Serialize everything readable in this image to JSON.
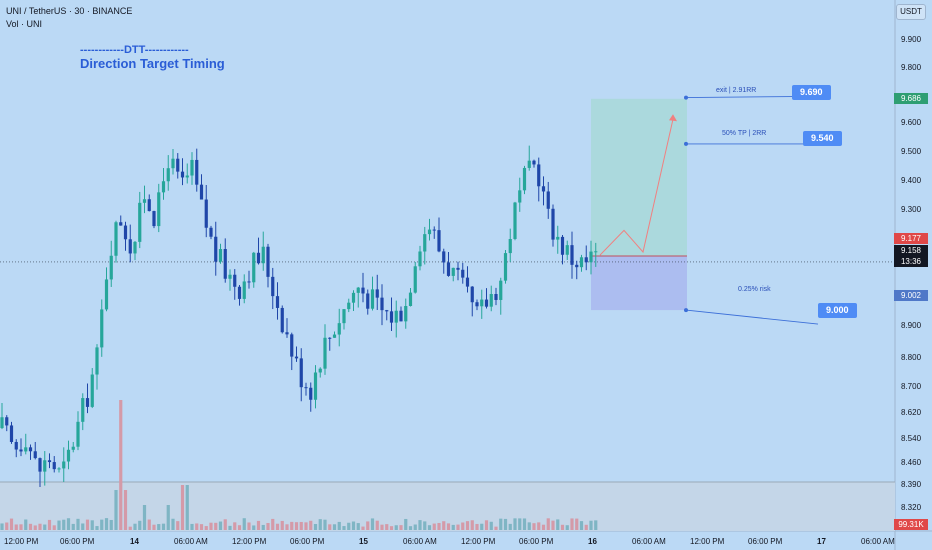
{
  "header": {
    "symbol_line": "UNI / TetherUS · 30 · BINANCE",
    "volume_line": "Vol · UNI",
    "currency_button": "USDT"
  },
  "watermark": {
    "line1": "------------DTT------------",
    "line2": "Direction Target Timing"
  },
  "annotations": {
    "exit_text": "exit | 2.91RR",
    "exit_price": "9.690",
    "tp_text": "50% TP | 2RR",
    "tp_price": "9.540",
    "risk_text": "0.25% risk",
    "risk_price": "9.000"
  },
  "price_axis": {
    "ticks": [
      "9.900",
      "9.800",
      "9.700",
      "9.600",
      "9.500",
      "9.400",
      "9.300",
      "9.100",
      "8.900",
      "8.800",
      "8.700",
      "8.620",
      "8.540",
      "8.460",
      "8.390",
      "8.320"
    ],
    "badge_target": "9.686",
    "badge_entry": "9.177",
    "badge_current": "9.158",
    "badge_countdown": "13:36",
    "badge_stop": "9.002",
    "badge_volume": "99.31K"
  },
  "time_axis": {
    "labels": [
      "12:00 PM",
      "06:00 PM",
      "14",
      "06:00 AM",
      "12:00 PM",
      "06:00 PM",
      "15",
      "06:00 AM",
      "12:00 PM",
      "06:00 PM",
      "16",
      "06:00 AM",
      "12:00 PM",
      "06:00 PM",
      "17",
      "06:00 AM"
    ]
  },
  "colors": {
    "background": "#bbd9f5",
    "up_candle": "#26a69a",
    "down_candle": "#1f46a8",
    "volume_up": "#7fb5c4",
    "volume_down": "#d49aa8",
    "profit_zone": "#a8d8d8",
    "loss_zone": "#a9b7ee",
    "projection_line": "#f08080"
  },
  "chart_data": {
    "type": "candlestick",
    "symbol": "UNI / TetherUS",
    "interval": "30",
    "exchange": "BINANCE",
    "y_unit": "USDT",
    "ylim": [
      8.29,
      9.98
    ],
    "position": {
      "entry": 9.177,
      "target": 9.686,
      "stop": 9.002
    },
    "close_path": [
      8.62,
      8.55,
      8.6,
      8.48,
      8.52,
      8.46,
      8.58,
      8.7,
      8.85,
      9.2,
      9.3,
      9.2,
      9.38,
      9.3,
      9.5,
      9.4,
      9.45,
      9.3,
      9.18,
      9.12,
      9.08,
      9.15,
      9.18,
      9.05,
      8.92,
      8.8,
      8.75,
      8.88,
      8.95,
      9.02,
      9.08,
      9.04,
      9.0,
      8.98,
      9.02,
      9.22,
      9.28,
      9.18,
      9.12,
      9.05,
      8.98,
      9.04,
      9.1,
      9.3,
      9.42,
      9.48,
      9.3,
      9.22,
      9.17,
      9.15,
      9.18
    ]
  }
}
